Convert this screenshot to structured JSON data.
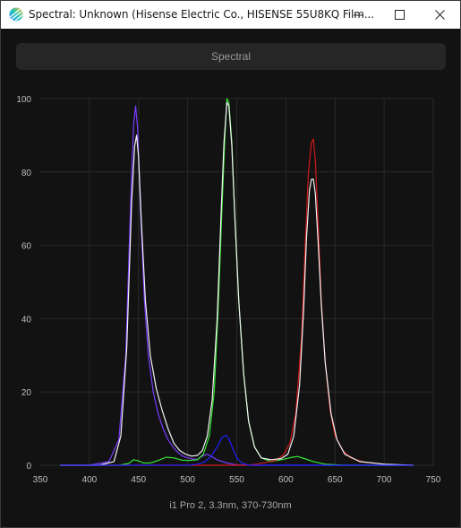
{
  "window": {
    "title": "Spectral: Unknown (Hisense Electric Co., HISENSE 55U8KQ Film..."
  },
  "tab": {
    "label": "Spectral"
  },
  "footer": {
    "caption": "i1 Pro 2, 3.3nm, 370-730nm"
  },
  "colors": {
    "background": "#121212",
    "grid": "#2a2a2a",
    "axis_text": "#bfbfbf",
    "blue": "#7a3cff",
    "green": "#33e833",
    "red": "#d21818",
    "white": "#f2f2f2",
    "dark_blue": "#2020ff"
  },
  "chart_data": {
    "type": "line",
    "xlim": [
      350,
      750
    ],
    "ylim": [
      0,
      100
    ],
    "x_ticks": [
      350,
      400,
      450,
      500,
      550,
      600,
      650,
      700,
      750
    ],
    "y_ticks": [
      0,
      20,
      40,
      60,
      80,
      100
    ],
    "grid": true,
    "series": [
      {
        "color": "blue",
        "points": [
          [
            370,
            0
          ],
          [
            400,
            0
          ],
          [
            420,
            1
          ],
          [
            430,
            7
          ],
          [
            437,
            30
          ],
          [
            442,
            72
          ],
          [
            445,
            93
          ],
          [
            447,
            98
          ],
          [
            449,
            92
          ],
          [
            452,
            70
          ],
          [
            456,
            45
          ],
          [
            460,
            30
          ],
          [
            465,
            20
          ],
          [
            470,
            14
          ],
          [
            475,
            10
          ],
          [
            480,
            7
          ],
          [
            485,
            5
          ],
          [
            490,
            3.5
          ],
          [
            495,
            2.5
          ],
          [
            500,
            2
          ],
          [
            505,
            1.7
          ],
          [
            510,
            1.6
          ],
          [
            515,
            2.5
          ],
          [
            520,
            3
          ],
          [
            530,
            1.5
          ],
          [
            540,
            0.6
          ],
          [
            550,
            0.1
          ],
          [
            570,
            0
          ],
          [
            730,
            0
          ]
        ]
      },
      {
        "color": "green",
        "points": [
          [
            370,
            0
          ],
          [
            430,
            0
          ],
          [
            440,
            0.5
          ],
          [
            445,
            1.5
          ],
          [
            450,
            1.2
          ],
          [
            455,
            0.6
          ],
          [
            462,
            0.6
          ],
          [
            470,
            1.3
          ],
          [
            478,
            2.2
          ],
          [
            486,
            2
          ],
          [
            494,
            1.4
          ],
          [
            502,
            1.3
          ],
          [
            510,
            1.5
          ],
          [
            516,
            3
          ],
          [
            522,
            8
          ],
          [
            527,
            20
          ],
          [
            531,
            42
          ],
          [
            535,
            70
          ],
          [
            538,
            90
          ],
          [
            540,
            100
          ],
          [
            542,
            99
          ],
          [
            545,
            88
          ],
          [
            548,
            68
          ],
          [
            552,
            45
          ],
          [
            557,
            25
          ],
          [
            562,
            12
          ],
          [
            568,
            5
          ],
          [
            575,
            2
          ],
          [
            585,
            1
          ],
          [
            595,
            1.5
          ],
          [
            605,
            2.1
          ],
          [
            612,
            2.4
          ],
          [
            620,
            1.7
          ],
          [
            628,
            1
          ],
          [
            640,
            0.3
          ],
          [
            660,
            0
          ],
          [
            730,
            0
          ]
        ]
      },
      {
        "color": "red",
        "points": [
          [
            370,
            0
          ],
          [
            560,
            0
          ],
          [
            570,
            0.3
          ],
          [
            580,
            0.8
          ],
          [
            590,
            1.3
          ],
          [
            598,
            3
          ],
          [
            604,
            6
          ],
          [
            610,
            14
          ],
          [
            616,
            35
          ],
          [
            620,
            62
          ],
          [
            623,
            80
          ],
          [
            626,
            88
          ],
          [
            628,
            89
          ],
          [
            630,
            83
          ],
          [
            633,
            65
          ],
          [
            636,
            45
          ],
          [
            640,
            28
          ],
          [
            645,
            15
          ],
          [
            650,
            8
          ],
          [
            658,
            4
          ],
          [
            666,
            2
          ],
          [
            680,
            0.8
          ],
          [
            700,
            0.3
          ],
          [
            720,
            0
          ],
          [
            730,
            0
          ]
        ]
      },
      {
        "color": "white",
        "points": [
          [
            370,
            0
          ],
          [
            410,
            0
          ],
          [
            425,
            1
          ],
          [
            432,
            8
          ],
          [
            438,
            32
          ],
          [
            443,
            72
          ],
          [
            446,
            87
          ],
          [
            448,
            90
          ],
          [
            450,
            84
          ],
          [
            453,
            66
          ],
          [
            457,
            45
          ],
          [
            462,
            30
          ],
          [
            468,
            21
          ],
          [
            474,
            15
          ],
          [
            480,
            10
          ],
          [
            486,
            6
          ],
          [
            492,
            4
          ],
          [
            498,
            3
          ],
          [
            504,
            2.5
          ],
          [
            510,
            2.7
          ],
          [
            515,
            4
          ],
          [
            520,
            8
          ],
          [
            525,
            18
          ],
          [
            530,
            40
          ],
          [
            534,
            68
          ],
          [
            537,
            88
          ],
          [
            540,
            99
          ],
          [
            542,
            98
          ],
          [
            545,
            87
          ],
          [
            548,
            68
          ],
          [
            552,
            45
          ],
          [
            557,
            25
          ],
          [
            562,
            12
          ],
          [
            568,
            5
          ],
          [
            575,
            2
          ],
          [
            585,
            1.5
          ],
          [
            595,
            1.8
          ],
          [
            602,
            3
          ],
          [
            608,
            8
          ],
          [
            614,
            22
          ],
          [
            618,
            42
          ],
          [
            621,
            62
          ],
          [
            624,
            75
          ],
          [
            626,
            78
          ],
          [
            628,
            78
          ],
          [
            630,
            74
          ],
          [
            633,
            60
          ],
          [
            636,
            44
          ],
          [
            640,
            28
          ],
          [
            646,
            14
          ],
          [
            652,
            7
          ],
          [
            660,
            3
          ],
          [
            675,
            1
          ],
          [
            700,
            0.3
          ],
          [
            730,
            0
          ]
        ]
      },
      {
        "color": "dark_blue",
        "points": [
          [
            370,
            0
          ],
          [
            500,
            0
          ],
          [
            510,
            0.3
          ],
          [
            518,
            1
          ],
          [
            524,
            2.5
          ],
          [
            530,
            5
          ],
          [
            535,
            7.5
          ],
          [
            539,
            8.2
          ],
          [
            542,
            7.2
          ],
          [
            546,
            4.5
          ],
          [
            550,
            2
          ],
          [
            555,
            0.6
          ],
          [
            562,
            0
          ],
          [
            730,
            0
          ]
        ]
      }
    ]
  }
}
